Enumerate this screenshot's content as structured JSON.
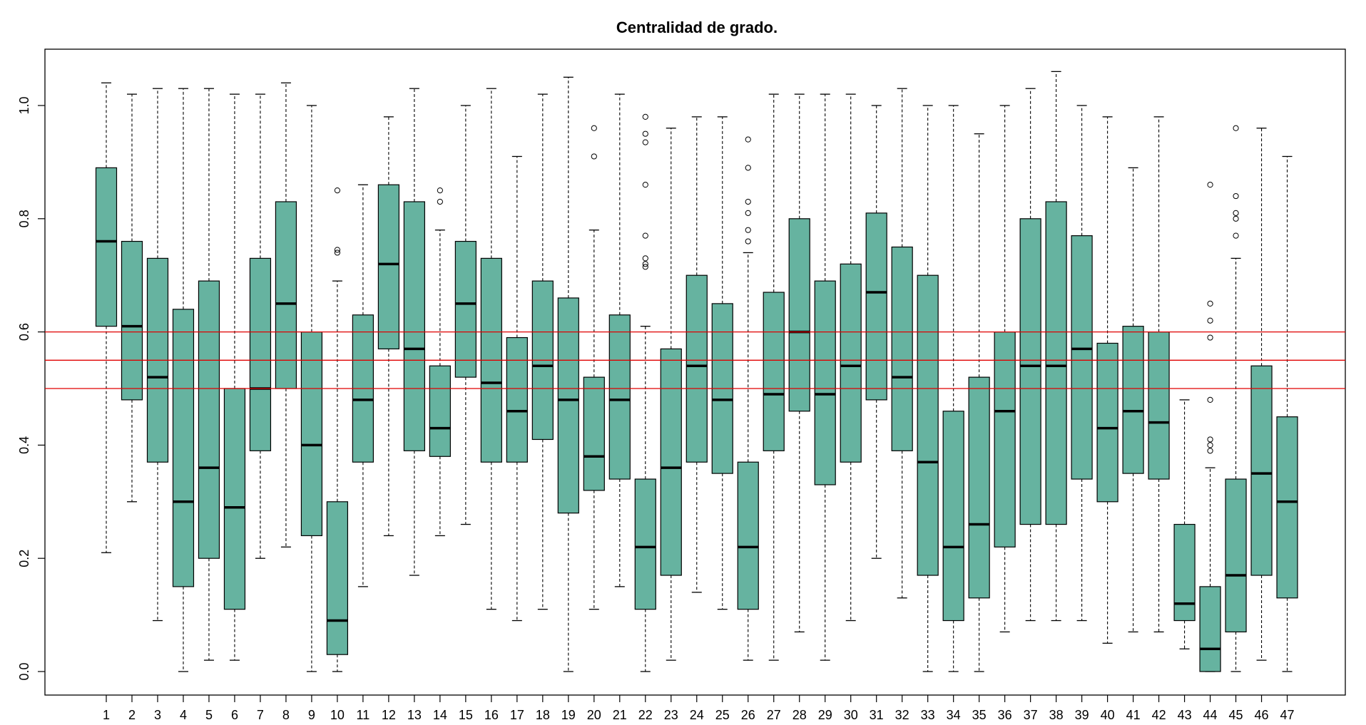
{
  "chart_data": {
    "type": "box",
    "title": "Centralidad de grado.",
    "xlabel": "",
    "ylabel": "",
    "ylim": [
      0,
      1
    ],
    "y_ticks": [
      "0.0",
      "0.2",
      "0.4",
      "0.6",
      "0.8",
      "1.0"
    ],
    "box_fill": "#66b3a0",
    "reference_line_color": "#e00000",
    "reference_lines": [
      0.5,
      0.55,
      0.6
    ],
    "categories": [
      "1",
      "2",
      "3",
      "4",
      "5",
      "6",
      "7",
      "8",
      "9",
      "10",
      "11",
      "12",
      "13",
      "14",
      "15",
      "16",
      "17",
      "18",
      "19",
      "20",
      "21",
      "22",
      "23",
      "24",
      "25",
      "26",
      "27",
      "28",
      "29",
      "30",
      "31",
      "32",
      "33",
      "34",
      "35",
      "36",
      "37",
      "38",
      "39",
      "40",
      "41",
      "42",
      "43",
      "44",
      "45",
      "46",
      "47"
    ],
    "boxes": [
      {
        "whislo": 0.21,
        "q1": 0.61,
        "med": 0.76,
        "q3": 0.89,
        "whishi": 1.04,
        "fliers": []
      },
      {
        "whislo": 0.3,
        "q1": 0.48,
        "med": 0.61,
        "q3": 0.76,
        "whishi": 1.02,
        "fliers": []
      },
      {
        "whislo": 0.09,
        "q1": 0.37,
        "med": 0.52,
        "q3": 0.73,
        "whishi": 1.03,
        "fliers": []
      },
      {
        "whislo": 0.0,
        "q1": 0.15,
        "med": 0.3,
        "q3": 0.64,
        "whishi": 1.03,
        "fliers": []
      },
      {
        "whislo": 0.02,
        "q1": 0.2,
        "med": 0.36,
        "q3": 0.69,
        "whishi": 1.03,
        "fliers": []
      },
      {
        "whislo": 0.02,
        "q1": 0.11,
        "med": 0.29,
        "q3": 0.5,
        "whishi": 1.02,
        "fliers": []
      },
      {
        "whislo": 0.2,
        "q1": 0.39,
        "med": 0.5,
        "q3": 0.73,
        "whishi": 1.02,
        "fliers": []
      },
      {
        "whislo": 0.22,
        "q1": 0.5,
        "med": 0.65,
        "q3": 0.83,
        "whishi": 1.04,
        "fliers": []
      },
      {
        "whislo": 0.0,
        "q1": 0.24,
        "med": 0.4,
        "q3": 0.6,
        "whishi": 1.0,
        "fliers": []
      },
      {
        "whislo": 0.0,
        "q1": 0.03,
        "med": 0.09,
        "q3": 0.3,
        "whishi": 0.69,
        "fliers": [
          0.74,
          0.745,
          0.85
        ]
      },
      {
        "whislo": 0.15,
        "q1": 0.37,
        "med": 0.48,
        "q3": 0.63,
        "whishi": 0.86,
        "fliers": []
      },
      {
        "whislo": 0.24,
        "q1": 0.57,
        "med": 0.72,
        "q3": 0.86,
        "whishi": 0.98,
        "fliers": []
      },
      {
        "whislo": 0.17,
        "q1": 0.39,
        "med": 0.57,
        "q3": 0.83,
        "whishi": 1.03,
        "fliers": []
      },
      {
        "whislo": 0.24,
        "q1": 0.38,
        "med": 0.43,
        "q3": 0.54,
        "whishi": 0.78,
        "fliers": [
          0.83,
          0.85
        ]
      },
      {
        "whislo": 0.26,
        "q1": 0.52,
        "med": 0.65,
        "q3": 0.76,
        "whishi": 1.0,
        "fliers": []
      },
      {
        "whislo": 0.11,
        "q1": 0.37,
        "med": 0.51,
        "q3": 0.73,
        "whishi": 1.03,
        "fliers": []
      },
      {
        "whislo": 0.09,
        "q1": 0.37,
        "med": 0.46,
        "q3": 0.59,
        "whishi": 0.91,
        "fliers": []
      },
      {
        "whislo": 0.11,
        "q1": 0.41,
        "med": 0.54,
        "q3": 0.69,
        "whishi": 1.02,
        "fliers": []
      },
      {
        "whislo": 0.0,
        "q1": 0.28,
        "med": 0.48,
        "q3": 0.66,
        "whishi": 1.05,
        "fliers": []
      },
      {
        "whislo": 0.11,
        "q1": 0.32,
        "med": 0.38,
        "q3": 0.52,
        "whishi": 0.78,
        "fliers": [
          0.91,
          0.96
        ]
      },
      {
        "whislo": 0.15,
        "q1": 0.34,
        "med": 0.48,
        "q3": 0.63,
        "whishi": 1.02,
        "fliers": []
      },
      {
        "whislo": 0.0,
        "q1": 0.11,
        "med": 0.22,
        "q3": 0.34,
        "whishi": 0.61,
        "fliers": [
          0.715,
          0.72,
          0.73,
          0.77,
          0.86,
          0.935,
          0.95,
          0.98
        ]
      },
      {
        "whislo": 0.02,
        "q1": 0.17,
        "med": 0.36,
        "q3": 0.57,
        "whishi": 0.96,
        "fliers": []
      },
      {
        "whislo": 0.14,
        "q1": 0.37,
        "med": 0.54,
        "q3": 0.7,
        "whishi": 0.98,
        "fliers": []
      },
      {
        "whislo": 0.11,
        "q1": 0.35,
        "med": 0.48,
        "q3": 0.65,
        "whishi": 0.98,
        "fliers": []
      },
      {
        "whislo": 0.02,
        "q1": 0.11,
        "med": 0.22,
        "q3": 0.37,
        "whishi": 0.74,
        "fliers": [
          0.76,
          0.78,
          0.81,
          0.83,
          0.89,
          0.94
        ]
      },
      {
        "whislo": 0.02,
        "q1": 0.39,
        "med": 0.49,
        "q3": 0.67,
        "whishi": 1.02,
        "fliers": []
      },
      {
        "whislo": 0.07,
        "q1": 0.46,
        "med": 0.6,
        "q3": 0.8,
        "whishi": 1.02,
        "fliers": []
      },
      {
        "whislo": 0.02,
        "q1": 0.33,
        "med": 0.49,
        "q3": 0.69,
        "whishi": 1.02,
        "fliers": []
      },
      {
        "whislo": 0.09,
        "q1": 0.37,
        "med": 0.54,
        "q3": 0.72,
        "whishi": 1.02,
        "fliers": []
      },
      {
        "whislo": 0.2,
        "q1": 0.48,
        "med": 0.67,
        "q3": 0.81,
        "whishi": 1.0,
        "fliers": []
      },
      {
        "whislo": 0.13,
        "q1": 0.39,
        "med": 0.52,
        "q3": 0.75,
        "whishi": 1.03,
        "fliers": []
      },
      {
        "whislo": 0.0,
        "q1": 0.17,
        "med": 0.37,
        "q3": 0.7,
        "whishi": 1.0,
        "fliers": []
      },
      {
        "whislo": 0.0,
        "q1": 0.09,
        "med": 0.22,
        "q3": 0.46,
        "whishi": 1.0,
        "fliers": []
      },
      {
        "whislo": 0.0,
        "q1": 0.13,
        "med": 0.26,
        "q3": 0.52,
        "whishi": 0.95,
        "fliers": []
      },
      {
        "whislo": 0.07,
        "q1": 0.22,
        "med": 0.46,
        "q3": 0.6,
        "whishi": 1.0,
        "fliers": []
      },
      {
        "whislo": 0.09,
        "q1": 0.26,
        "med": 0.54,
        "q3": 0.8,
        "whishi": 1.03,
        "fliers": []
      },
      {
        "whislo": 0.09,
        "q1": 0.26,
        "med": 0.54,
        "q3": 0.83,
        "whishi": 1.06,
        "fliers": []
      },
      {
        "whislo": 0.09,
        "q1": 0.34,
        "med": 0.57,
        "q3": 0.77,
        "whishi": 1.0,
        "fliers": []
      },
      {
        "whislo": 0.05,
        "q1": 0.3,
        "med": 0.43,
        "q3": 0.58,
        "whishi": 0.98,
        "fliers": []
      },
      {
        "whislo": 0.07,
        "q1": 0.35,
        "med": 0.46,
        "q3": 0.61,
        "whishi": 0.89,
        "fliers": []
      },
      {
        "whislo": 0.07,
        "q1": 0.34,
        "med": 0.44,
        "q3": 0.6,
        "whishi": 0.98,
        "fliers": []
      },
      {
        "whislo": 0.04,
        "q1": 0.09,
        "med": 0.12,
        "q3": 0.26,
        "whishi": 0.48,
        "fliers": []
      },
      {
        "whislo": 0.0,
        "q1": 0.0,
        "med": 0.04,
        "q3": 0.15,
        "whishi": 0.36,
        "fliers": [
          0.39,
          0.4,
          0.41,
          0.48,
          0.59,
          0.62,
          0.65,
          0.86
        ]
      },
      {
        "whislo": 0.0,
        "q1": 0.07,
        "med": 0.17,
        "q3": 0.34,
        "whishi": 0.73,
        "fliers": [
          0.77,
          0.8,
          0.81,
          0.84,
          0.96
        ]
      },
      {
        "whislo": 0.02,
        "q1": 0.17,
        "med": 0.35,
        "q3": 0.54,
        "whishi": 0.96,
        "fliers": []
      },
      {
        "whislo": 0.0,
        "q1": 0.13,
        "med": 0.3,
        "q3": 0.45,
        "whishi": 0.91,
        "fliers": []
      }
    ]
  }
}
